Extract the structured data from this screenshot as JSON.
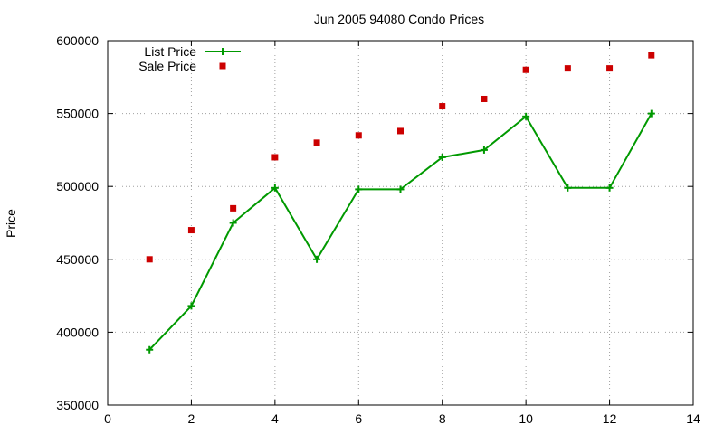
{
  "chart_data": {
    "type": "line",
    "title": "Jun 2005 94080 Condo Prices",
    "xlabel": "",
    "ylabel": "Price",
    "xlim": [
      0,
      14
    ],
    "ylim": [
      350000,
      600000
    ],
    "x_ticks": [
      0,
      2,
      4,
      6,
      8,
      10,
      12,
      14
    ],
    "y_ticks": [
      350000,
      400000,
      450000,
      500000,
      550000,
      600000
    ],
    "grid": true,
    "legend_position": "top-left",
    "series": [
      {
        "name": "List Price",
        "style": "line-plus",
        "color": "#009900",
        "x": [
          1,
          2,
          3,
          4,
          5,
          6,
          7,
          8,
          9,
          10,
          11,
          12,
          13
        ],
        "y": [
          388000,
          418000,
          475000,
          499000,
          450000,
          498000,
          498000,
          520000,
          525000,
          548000,
          499000,
          499000,
          550000
        ]
      },
      {
        "name": "Sale Price",
        "style": "square-markers",
        "color": "#cc0000",
        "x": [
          1,
          2,
          3,
          4,
          5,
          6,
          7,
          8,
          9,
          10,
          11,
          12,
          13
        ],
        "y": [
          450000,
          470000,
          485000,
          520000,
          530000,
          535000,
          538000,
          555000,
          560000,
          580000,
          581000,
          581000,
          590000
        ]
      }
    ]
  }
}
